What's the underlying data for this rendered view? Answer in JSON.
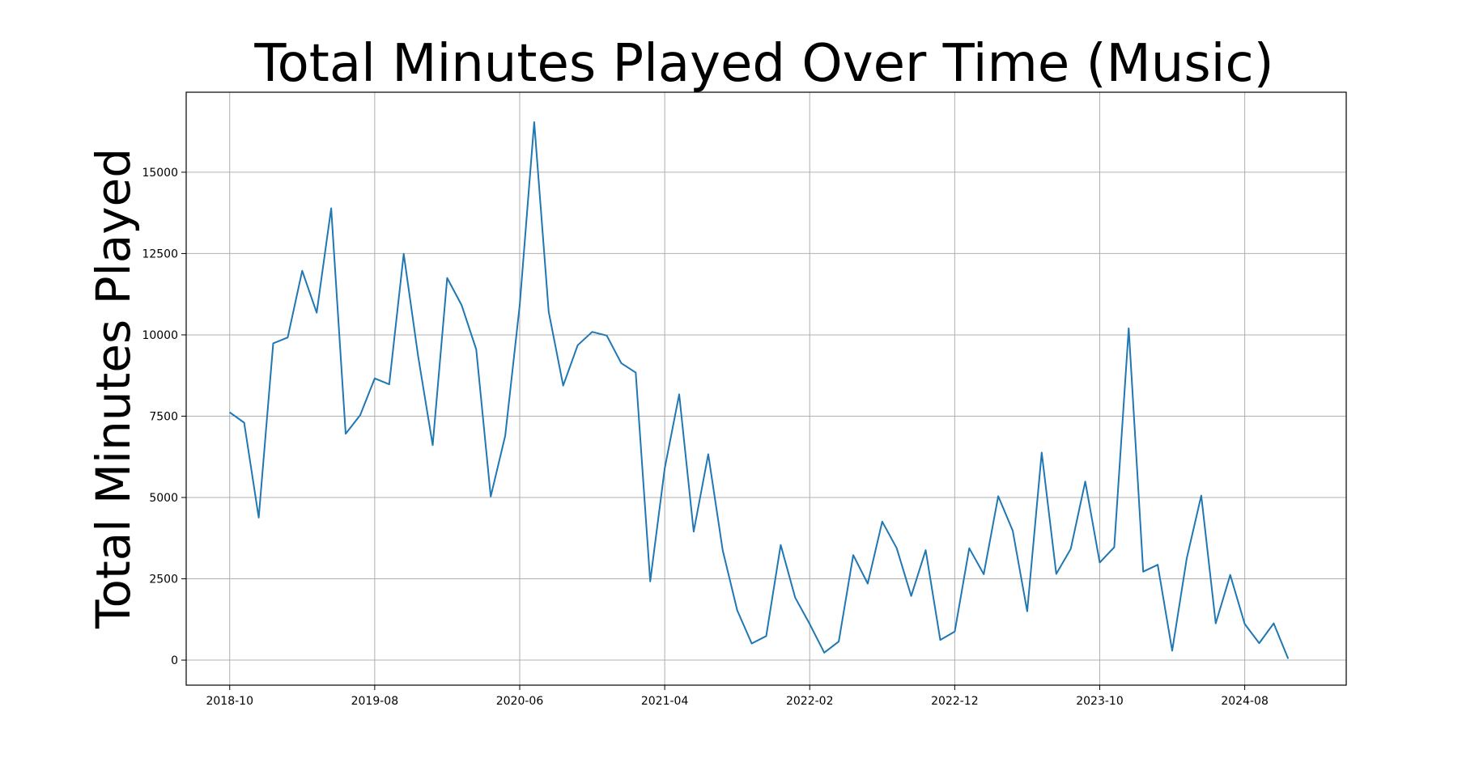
{
  "chart_data": {
    "type": "line",
    "title": "Total Minutes Played Over Time (Music)",
    "xlabel": "",
    "ylabel": "Total Minutes Played",
    "grid": true,
    "ylim": [
      -770,
      17460
    ],
    "xlim": [
      "2018-07",
      "2025-03"
    ],
    "yticks": [
      0,
      2500,
      5000,
      7500,
      10000,
      12500,
      15000
    ],
    "ytick_labels": [
      "0",
      "2500",
      "5000",
      "7500",
      "10000",
      "12500",
      "15000"
    ],
    "xticks": [
      "2018-10",
      "2019-08",
      "2020-06",
      "2021-04",
      "2022-02",
      "2022-12",
      "2023-10",
      "2024-08"
    ],
    "series_color": "#1f77b4",
    "series": [
      {
        "x": [
          "2018-10",
          "2018-11",
          "2018-12",
          "2019-01",
          "2019-02",
          "2019-03",
          "2019-04",
          "2019-05",
          "2019-06",
          "2019-07",
          "2019-08",
          "2019-09",
          "2019-10",
          "2019-11",
          "2019-12",
          "2020-01",
          "2020-02",
          "2020-03",
          "2020-04",
          "2020-05",
          "2020-06",
          "2020-07",
          "2020-08",
          "2020-09",
          "2020-10",
          "2020-11",
          "2020-12",
          "2021-01",
          "2021-02",
          "2021-03",
          "2021-04",
          "2021-05",
          "2021-06",
          "2021-07",
          "2021-08",
          "2021-09",
          "2021-10",
          "2021-11",
          "2021-12",
          "2022-01",
          "2022-02",
          "2022-03",
          "2022-04",
          "2022-05",
          "2022-06",
          "2022-07",
          "2022-08",
          "2022-09",
          "2022-10",
          "2022-11",
          "2022-12",
          "2023-01",
          "2023-02",
          "2023-03",
          "2023-04",
          "2023-05",
          "2023-06",
          "2023-07",
          "2023-08",
          "2023-09",
          "2023-10",
          "2023-11",
          "2023-12",
          "2024-01",
          "2024-02",
          "2024-03",
          "2024-04",
          "2024-05",
          "2024-06",
          "2024-07",
          "2024-08",
          "2024-09",
          "2024-10",
          "2024-11"
        ],
        "values": [
          7620,
          7300,
          4380,
          9740,
          9920,
          11970,
          10680,
          13890,
          6960,
          7530,
          8660,
          8480,
          12490,
          9330,
          6610,
          11750,
          10910,
          9550,
          5030,
          6900,
          10910,
          16540,
          10710,
          8440,
          9680,
          10090,
          9980,
          9130,
          8840,
          2420,
          5890,
          8170,
          3950,
          6330,
          3370,
          1530,
          510,
          740,
          3540,
          1920,
          1110,
          230,
          570,
          3230,
          2350,
          4260,
          3440,
          1970,
          3380,
          620,
          880,
          3440,
          2640,
          5040,
          3980,
          1500,
          6380,
          2650,
          3420,
          5490,
          3000,
          3470,
          10200,
          2720,
          2930,
          290,
          3130,
          5060,
          1130,
          2620,
          1110,
          520,
          1130,
          40
        ]
      }
    ]
  }
}
